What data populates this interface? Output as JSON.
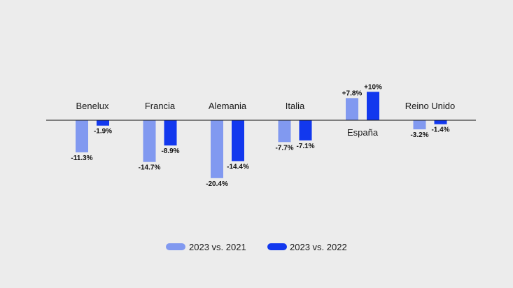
{
  "chart_data": {
    "type": "bar",
    "categories": [
      "Benelux",
      "Francia",
      "Alemania",
      "Italia",
      "España",
      "Reino Unido"
    ],
    "series": [
      {
        "name": "2023 vs. 2021",
        "color": "#8199f0",
        "values": [
          -11.3,
          -14.7,
          -20.4,
          -7.7,
          7.8,
          -3.2
        ],
        "labels": [
          "-11.3%",
          "-14.7%",
          "-20.4%",
          "-7.7%",
          "+7.8%",
          "-3.2%"
        ]
      },
      {
        "name": "2023 vs. 2022",
        "color": "#1238ee",
        "values": [
          -1.9,
          -8.9,
          -14.4,
          -7.1,
          10,
          -1.4
        ],
        "labels": [
          "-1.9%",
          "-8.9%",
          "-14.4%",
          "-7.1%",
          "+10%",
          "-1.4%"
        ]
      }
    ],
    "legend_position": "bottom-center",
    "grid": false,
    "title": "",
    "xlabel": "",
    "ylabel": ""
  }
}
